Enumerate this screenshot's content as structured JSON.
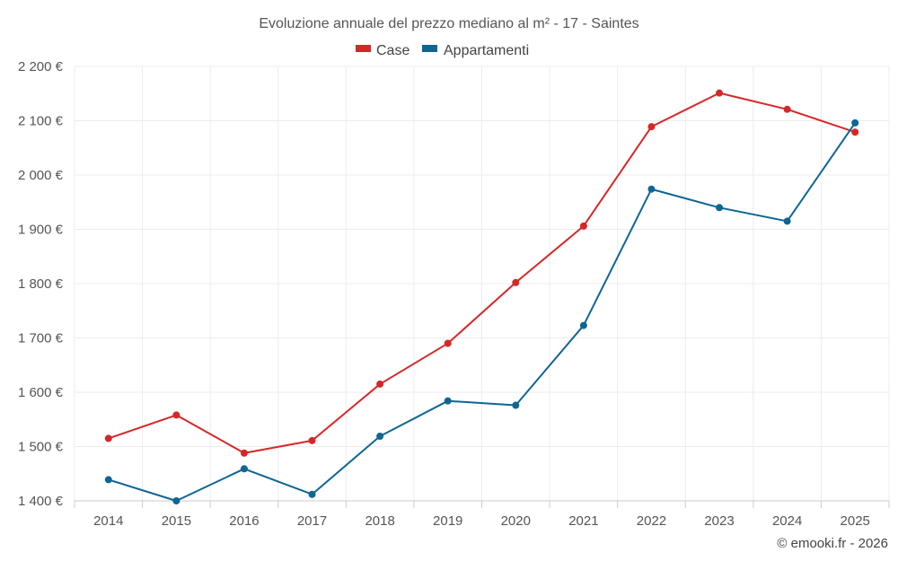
{
  "chart_data": {
    "type": "line",
    "title": "Evoluzione annuale del prezzo mediano al m² - 17 - Saintes",
    "categories": [
      "2014",
      "2015",
      "2016",
      "2017",
      "2018",
      "2019",
      "2020",
      "2021",
      "2022",
      "2023",
      "2024",
      "2025"
    ],
    "series": [
      {
        "name": "Case",
        "color": "#d62728",
        "values": [
          1515,
          1558,
          1488,
          1511,
          1615,
          1690,
          1802,
          1906,
          2089,
          2151,
          2121,
          2079
        ]
      },
      {
        "name": "Appartamenti",
        "color": "#0d6694",
        "values": [
          1439,
          1400,
          1459,
          1412,
          1519,
          1584,
          1576,
          1723,
          1974,
          1940,
          1915,
          2096
        ]
      }
    ],
    "ylim": [
      1400,
      2200
    ],
    "yticks": [
      1400,
      1500,
      1600,
      1700,
      1800,
      1900,
      2000,
      2100,
      2200
    ],
    "ytick_labels": [
      "1 400 €",
      "1 500 €",
      "1 600 €",
      "1 700 €",
      "1 800 €",
      "1 900 €",
      "2 000 €",
      "2 100 €",
      "2 200 €"
    ],
    "xlabel": "",
    "ylabel": "",
    "grid": true,
    "legend_position": "top-center"
  },
  "credit": "© emooki.fr - 2026"
}
